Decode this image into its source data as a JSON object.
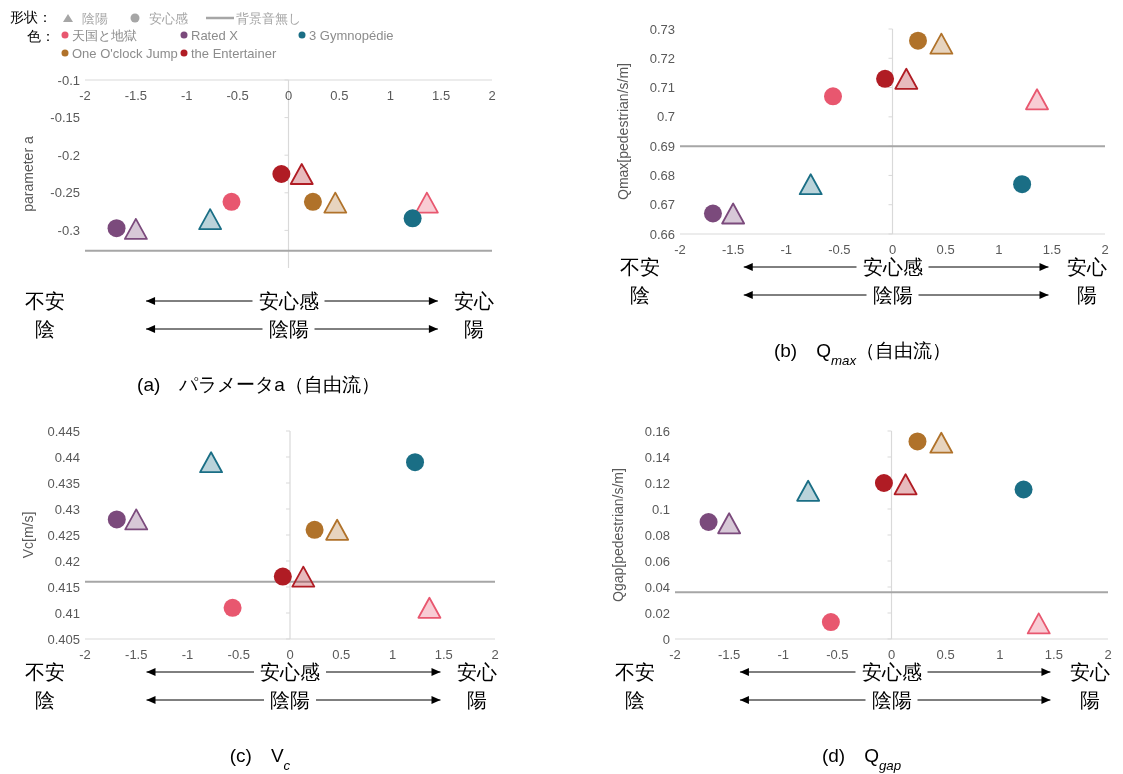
{
  "chart_data": [
    {
      "type": "scatter",
      "title": "(a)　パラメータa（自由流）",
      "ylabel": "parameter a",
      "xlim": [
        -2,
        2
      ],
      "xticks": [
        -2,
        -1.5,
        -1,
        -0.5,
        0,
        0.5,
        1,
        1.5,
        2
      ],
      "ylim": [
        -0.35,
        -0.1
      ],
      "yticks": [
        -0.3,
        -0.25,
        -0.2,
        -0.15,
        -0.1
      ],
      "legend": "top left",
      "ref_lines": [
        {
          "axis": "y",
          "value": -0.327,
          "label": "背景音無し",
          "color": "#a6a6a6"
        }
      ],
      "annotations": [
        "不安",
        "陰",
        "安心感",
        "陰陽",
        "安心",
        "陽",
        "形状：",
        "陰陽",
        "安心感",
        "色："
      ],
      "series": [
        {
          "color": "#e8576f",
          "marker": "triangle",
          "x": [
            1.36
          ],
          "values": [
            -0.263
          ]
        },
        {
          "color": "#7b4a7c",
          "marker": "triangle",
          "x": [
            -1.5
          ],
          "values": [
            -0.298
          ]
        },
        {
          "color": "#1a6e85",
          "marker": "triangle",
          "x": [
            -0.77
          ],
          "values": [
            -0.285
          ]
        },
        {
          "color": "#b0722a",
          "marker": "triangle",
          "x": [
            0.46
          ],
          "values": [
            -0.263
          ]
        },
        {
          "color": "#b01c24",
          "marker": "triangle",
          "x": [
            0.13
          ],
          "values": [
            -0.225
          ]
        },
        {
          "name": "天国と地獄",
          "color": "#e8576f",
          "marker": "circle",
          "x": [
            -0.56
          ],
          "values": [
            -0.262
          ]
        },
        {
          "name": "Rated X",
          "color": "#7b4a7c",
          "marker": "circle",
          "x": [
            -1.69
          ],
          "values": [
            -0.297
          ]
        },
        {
          "name": "3 Gymnopédie",
          "color": "#1a6e85",
          "marker": "circle",
          "x": [
            1.22
          ],
          "values": [
            -0.284
          ]
        },
        {
          "name": "One O'clock Jump",
          "color": "#b0722a",
          "marker": "circle",
          "x": [
            0.24
          ],
          "values": [
            -0.262
          ]
        },
        {
          "name": "the Entertainer",
          "color": "#b01c24",
          "marker": "circle",
          "x": [
            -0.07
          ],
          "values": [
            -0.225
          ]
        }
      ]
    },
    {
      "type": "scatter",
      "title": "(b)　Q$_{max}$（自由流）",
      "ylabel": "Qmax[pedestrian/s/m]",
      "xlim": [
        -2,
        2
      ],
      "xticks": [
        -2,
        -1.5,
        -1,
        -0.5,
        0,
        0.5,
        1,
        1.5,
        2
      ],
      "ylim": [
        0.66,
        0.73
      ],
      "yticks": [
        0.66,
        0.67,
        0.68,
        0.69,
        0.7,
        0.71,
        0.72,
        0.73
      ],
      "ref_lines": [
        {
          "axis": "y",
          "value": 0.69,
          "color": "#a6a6a6"
        }
      ],
      "annotations": [
        "不安",
        "陰",
        "安心感",
        "陰陽",
        "安心",
        "陽"
      ],
      "series": [
        {
          "color": "#e8576f",
          "marker": "triangle",
          "x": [
            1.36
          ],
          "values": [
            0.706
          ]
        },
        {
          "color": "#7b4a7c",
          "marker": "triangle",
          "x": [
            -1.5
          ],
          "values": [
            0.667
          ]
        },
        {
          "color": "#1a6e85",
          "marker": "triangle",
          "x": [
            -0.77
          ],
          "values": [
            0.677
          ]
        },
        {
          "color": "#b0722a",
          "marker": "triangle",
          "x": [
            0.46
          ],
          "values": [
            0.725
          ]
        },
        {
          "color": "#b01c24",
          "marker": "triangle",
          "x": [
            0.13
          ],
          "values": [
            0.713
          ]
        },
        {
          "color": "#e8576f",
          "marker": "circle",
          "x": [
            -0.56
          ],
          "values": [
            0.707
          ]
        },
        {
          "color": "#7b4a7c",
          "marker": "circle",
          "x": [
            -1.69
          ],
          "values": [
            0.667
          ]
        },
        {
          "color": "#1a6e85",
          "marker": "circle",
          "x": [
            1.22
          ],
          "values": [
            0.677
          ]
        },
        {
          "color": "#b0722a",
          "marker": "circle",
          "x": [
            0.24
          ],
          "values": [
            0.726
          ]
        },
        {
          "color": "#b01c24",
          "marker": "circle",
          "x": [
            -0.07
          ],
          "values": [
            0.713
          ]
        }
      ]
    },
    {
      "type": "scatter",
      "title": "(c)　V$_{c}$",
      "ylabel": "Vc[m/s]",
      "xlim": [
        -2,
        2
      ],
      "xticks": [
        -2,
        -1.5,
        -1,
        -0.5,
        0,
        0.5,
        1,
        1.5,
        2
      ],
      "ylim": [
        0.405,
        0.445
      ],
      "yticks": [
        0.405,
        0.41,
        0.415,
        0.42,
        0.425,
        0.43,
        0.435,
        0.44,
        0.445
      ],
      "ref_lines": [
        {
          "axis": "y",
          "value": 0.416,
          "color": "#a6a6a6"
        }
      ],
      "annotations": [
        "不安",
        "陰",
        "安心感",
        "陰陽",
        "安心",
        "陽"
      ],
      "series": [
        {
          "color": "#e8576f",
          "marker": "triangle",
          "x": [
            1.36
          ],
          "values": [
            0.411
          ]
        },
        {
          "color": "#7b4a7c",
          "marker": "triangle",
          "x": [
            -1.5
          ],
          "values": [
            0.428
          ]
        },
        {
          "color": "#1a6e85",
          "marker": "triangle",
          "x": [
            -0.77
          ],
          "values": [
            0.439
          ]
        },
        {
          "color": "#b0722a",
          "marker": "triangle",
          "x": [
            0.46
          ],
          "values": [
            0.426
          ]
        },
        {
          "color": "#b01c24",
          "marker": "triangle",
          "x": [
            0.13
          ],
          "values": [
            0.417
          ]
        },
        {
          "color": "#e8576f",
          "marker": "circle",
          "x": [
            -0.56
          ],
          "values": [
            0.411
          ]
        },
        {
          "color": "#7b4a7c",
          "marker": "circle",
          "x": [
            -1.69
          ],
          "values": [
            0.428
          ]
        },
        {
          "color": "#1a6e85",
          "marker": "circle",
          "x": [
            1.22
          ],
          "values": [
            0.439
          ]
        },
        {
          "color": "#b0722a",
          "marker": "circle",
          "x": [
            0.24
          ],
          "values": [
            0.426
          ]
        },
        {
          "color": "#b01c24",
          "marker": "circle",
          "x": [
            -0.07
          ],
          "values": [
            0.417
          ]
        }
      ]
    },
    {
      "type": "scatter",
      "title": "(d)　Q$_{gap}$",
      "ylabel": "Qgap[pedestrian/s/m]",
      "xlim": [
        -2,
        2
      ],
      "xticks": [
        -2,
        -1.5,
        -1,
        -0.5,
        0,
        0.5,
        1,
        1.5,
        2
      ],
      "ylim": [
        0,
        0.16
      ],
      "yticks": [
        0,
        0.02,
        0.04,
        0.06,
        0.08,
        0.1,
        0.12,
        0.14,
        0.16
      ],
      "ref_lines": [
        {
          "axis": "y",
          "value": 0.036,
          "color": "#a6a6a6"
        }
      ],
      "annotations": [
        "不安",
        "陰",
        "安心感",
        "陰陽",
        "安心",
        "陽"
      ],
      "series": [
        {
          "color": "#e8576f",
          "marker": "triangle",
          "x": [
            1.36
          ],
          "values": [
            0.012
          ]
        },
        {
          "color": "#7b4a7c",
          "marker": "triangle",
          "x": [
            -1.5
          ],
          "values": [
            0.089
          ]
        },
        {
          "color": "#1a6e85",
          "marker": "triangle",
          "x": [
            -0.77
          ],
          "values": [
            0.114
          ]
        },
        {
          "color": "#b0722a",
          "marker": "triangle",
          "x": [
            0.46
          ],
          "values": [
            0.151
          ]
        },
        {
          "color": "#b01c24",
          "marker": "triangle",
          "x": [
            0.13
          ],
          "values": [
            0.119
          ]
        },
        {
          "color": "#e8576f",
          "marker": "circle",
          "x": [
            -0.56
          ],
          "values": [
            0.013
          ]
        },
        {
          "color": "#7b4a7c",
          "marker": "circle",
          "x": [
            -1.69
          ],
          "values": [
            0.09
          ]
        },
        {
          "color": "#1a6e85",
          "marker": "circle",
          "x": [
            1.22
          ],
          "values": [
            0.115
          ]
        },
        {
          "color": "#b0722a",
          "marker": "circle",
          "x": [
            0.24
          ],
          "values": [
            0.152
          ]
        },
        {
          "color": "#b01c24",
          "marker": "circle",
          "x": [
            -0.07
          ],
          "values": [
            0.12
          ]
        }
      ]
    }
  ]
}
